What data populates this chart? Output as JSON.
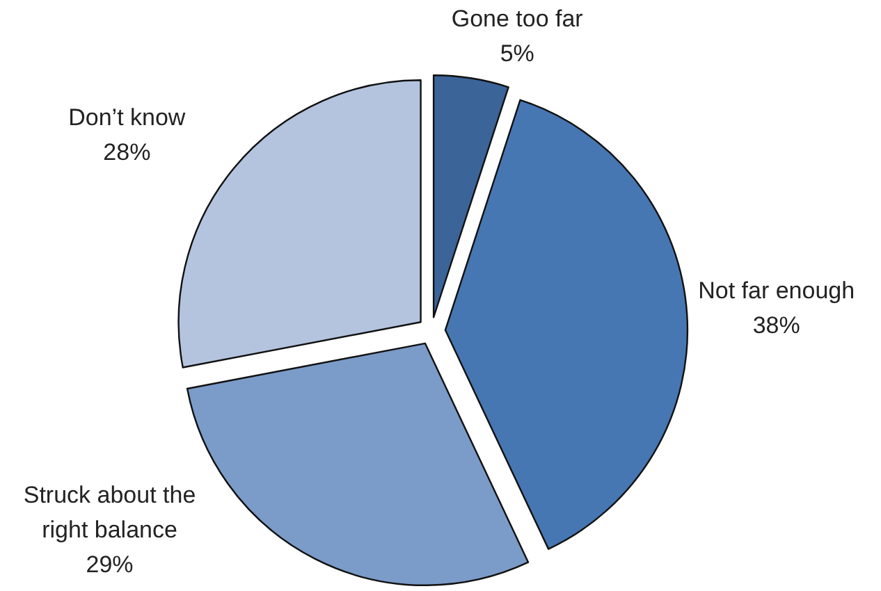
{
  "chart_data": {
    "type": "pie",
    "categories": [
      "Gone too far",
      "Not far enough",
      "Struck about the right balance",
      "Don’t know"
    ],
    "values": [
      5,
      38,
      29,
      28
    ],
    "value_labels": [
      "5%",
      "38%",
      "29%",
      "28%"
    ],
    "colors": [
      "#3b6499",
      "#4677b3",
      "#7b9bc9",
      "#b4c4df"
    ]
  }
}
